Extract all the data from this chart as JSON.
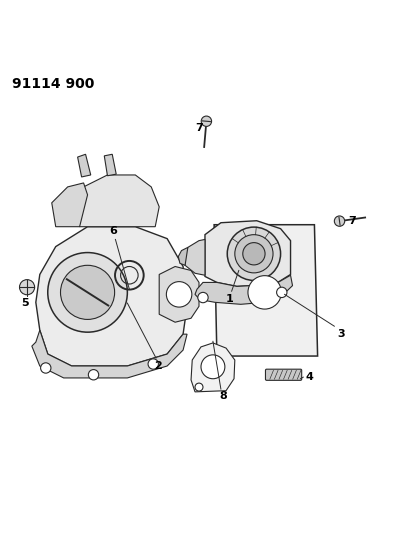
{
  "title": "91114 900",
  "background_color": "#ffffff",
  "line_color": "#2a2a2a",
  "label_color": "#000000",
  "fig_width": 3.98,
  "fig_height": 5.33,
  "dpi": 100
}
